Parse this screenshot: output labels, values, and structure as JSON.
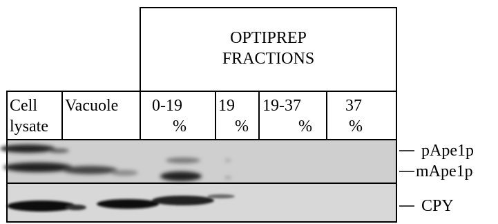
{
  "header": {
    "title_lines": [
      "OPTIPREP",
      "FRACTIONS"
    ]
  },
  "columns": [
    {
      "lines": [
        "Cell",
        "lysate"
      ]
    },
    {
      "lines": [
        "Vacuole"
      ]
    },
    {
      "lines": [
        "0-19",
        "%"
      ]
    },
    {
      "lines": [
        "19",
        "%"
      ]
    },
    {
      "lines": [
        "19-37",
        "%"
      ]
    },
    {
      "lines": [
        "37",
        "%"
      ]
    }
  ],
  "band_labels": [
    "pApe1p",
    "mApe1p",
    "CPY"
  ]
}
